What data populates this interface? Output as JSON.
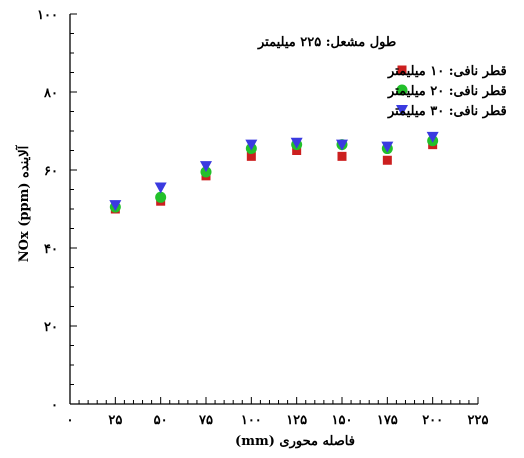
{
  "chart_data": {
    "type": "scatter",
    "title": "",
    "annotation": "طول مشعل: ۲۲۵ میلیمتر",
    "xlabel": "فاصله محوری (mm)",
    "ylabel": "آلاینده NOx (ppm)",
    "xlim": [
      0,
      225
    ],
    "ylim": [
      0,
      100
    ],
    "x_ticks": [
      0,
      25,
      50,
      75,
      100,
      125,
      150,
      175,
      200,
      225
    ],
    "x_tick_labels": [
      "۰",
      "۲۵",
      "۵۰",
      "۷۵",
      "۱۰۰",
      "۱۲۵",
      "۱۵۰",
      "۱۷۵",
      "۲۰۰",
      "۲۲۵"
    ],
    "y_ticks": [
      0,
      20,
      40,
      60,
      80,
      100
    ],
    "y_tick_labels": [
      "۰",
      "۲۰",
      "۴۰",
      "۶۰",
      "۸۰",
      "۱۰۰"
    ],
    "legend_position": "top-right",
    "grid": false,
    "series": [
      {
        "name": "قطر نافی: ۱۰ میلیمتر",
        "marker": "square",
        "color": "#cc1f1f",
        "x": [
          25,
          50,
          75,
          100,
          125,
          150,
          175,
          200
        ],
        "y": [
          50,
          52,
          58.5,
          63.5,
          65,
          63.5,
          62.5,
          66.5
        ]
      },
      {
        "name": "قطر نافی: ۲۰ میلیمتر",
        "marker": "circle",
        "color": "#22c02a",
        "x": [
          25,
          50,
          75,
          100,
          125,
          150,
          175,
          200
        ],
        "y": [
          50.5,
          53,
          59.5,
          65.5,
          66.5,
          66.5,
          65.5,
          67.5
        ]
      },
      {
        "name": "قطر نافی: ۳۰ میلیمتر",
        "marker": "triangle-down",
        "color": "#3a3ae0",
        "x": [
          25,
          50,
          75,
          100,
          125,
          150,
          175,
          200
        ],
        "y": [
          51,
          55.5,
          61,
          66.5,
          67,
          66.5,
          66,
          68.5
        ]
      }
    ]
  }
}
